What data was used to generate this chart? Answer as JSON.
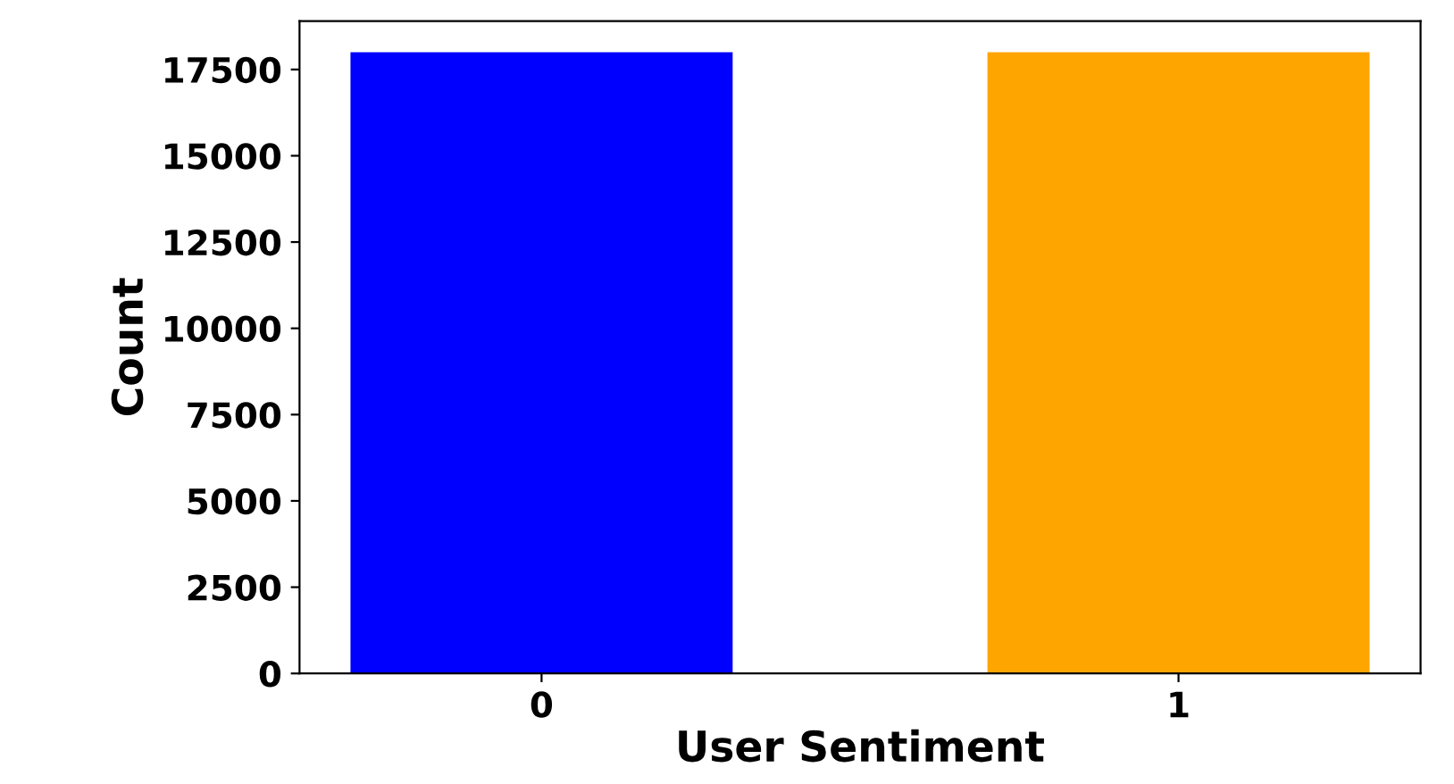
{
  "chart_data": {
    "type": "bar",
    "xlabel": "User Sentiment",
    "ylabel": "Count",
    "categories": [
      "0",
      "1"
    ],
    "values": [
      18000,
      18000
    ],
    "colors": [
      "#0000ff",
      "#ffa500"
    ],
    "ylim": [
      0,
      18900
    ],
    "yticks": [
      0,
      2500,
      5000,
      7500,
      10000,
      12500,
      15000,
      17500
    ],
    "grid": false,
    "legend": false
  }
}
